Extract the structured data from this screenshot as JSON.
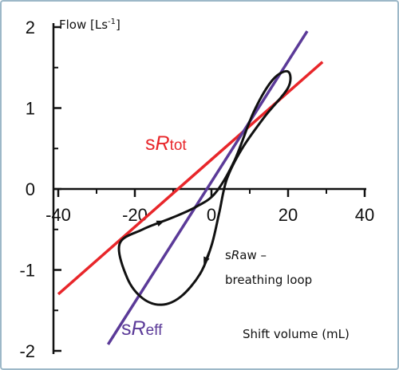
{
  "chart_data": {
    "type": "line",
    "title": "",
    "xlabel": "Shift volume  (mL)",
    "ylabel": "Flow [Ls",
    "ylabel_sup": "-1",
    "ylabel_end": "]",
    "xlim": [
      -40,
      40
    ],
    "ylim": [
      -2,
      2
    ],
    "x_ticks": [
      "-40",
      "-20",
      "0",
      "20",
      "40"
    ],
    "y_ticks": [
      "2",
      "1",
      "0",
      "-1",
      "-2"
    ],
    "x_tick_values": [
      -40,
      -20,
      0,
      20,
      40
    ],
    "y_tick_values": [
      2,
      1,
      0,
      -1,
      -2
    ],
    "grid": false,
    "series": [
      {
        "name": "sRtot",
        "label_prefix": "s",
        "label_italic": "R",
        "label_suffix": "tot",
        "color": "#e8262a",
        "x": [
          -40,
          29
        ],
        "y": [
          -1.3,
          1.57
        ]
      },
      {
        "name": "sReff",
        "label_prefix": "s",
        "label_italic": "R",
        "label_suffix": "eff",
        "color": "#5b3a98",
        "x": [
          -27,
          25
        ],
        "y": [
          -1.92,
          1.95
        ]
      },
      {
        "name": "breathing loop",
        "color": "#111111",
        "x": [
          -24,
          -18,
          -10,
          -4,
          1,
          6,
          11,
          16,
          20,
          20,
          14,
          8,
          4,
          2,
          0,
          -3,
          -8,
          -13,
          -18,
          -22,
          -24
        ],
        "y": [
          -0.68,
          -0.5,
          -0.35,
          -0.22,
          -0.05,
          0.35,
          0.95,
          1.35,
          1.45,
          1.25,
          0.9,
          0.5,
          0.12,
          -0.3,
          -0.7,
          -1.05,
          -1.33,
          -1.43,
          -1.35,
          -1.1,
          -0.68
        ]
      }
    ],
    "annotations": {
      "loop_line1_prefix": "s",
      "loop_line1_italic": "R",
      "loop_line1_suffix": "aw –",
      "loop_line2": "breathing loop"
    }
  }
}
